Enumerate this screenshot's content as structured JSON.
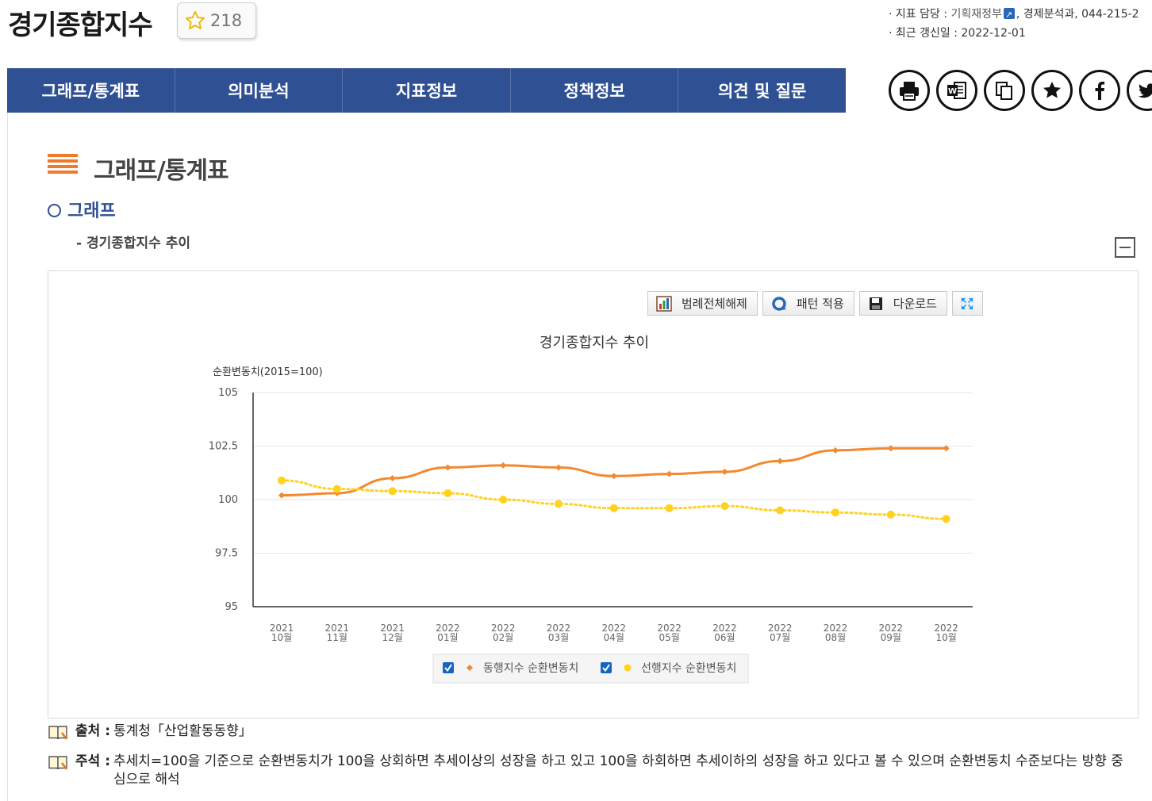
{
  "header": {
    "title": "경기종합지수",
    "favorite_count": "218",
    "meta": {
      "dept_label": "· 지표 담당 :",
      "dept_link": "기획재정부",
      "dept_rest": ", 경제분석과, 044-215-2",
      "updated_label": "· 최근 갱신일 :",
      "updated_value": "2022-12-01"
    }
  },
  "nav": {
    "tabs": [
      {
        "label": "그래프/통계표"
      },
      {
        "label": "의미분석"
      },
      {
        "label": "지표정보"
      },
      {
        "label": "정책정보"
      },
      {
        "label": "의견 및 질문"
      }
    ]
  },
  "share": [
    "printer-icon",
    "word-icon",
    "copy-icon",
    "star-icon",
    "facebook-icon",
    "twitter-icon"
  ],
  "section": {
    "title": "그래프/통계표",
    "subtitle": "그래프",
    "chart_caption": "- 경기종합지수 추이"
  },
  "toolbar": {
    "legend_off": "범례전체해제",
    "pattern": "패턴 적용",
    "download": "다운로드"
  },
  "chart_data": {
    "type": "line",
    "title": "경기종합지수 추이",
    "ylabel": "순환변동치(2015=100)",
    "xlabel": "",
    "ylim": [
      95,
      105
    ],
    "yticks": [
      "105",
      "102.5",
      "100",
      "97.5",
      "95"
    ],
    "categories": [
      [
        "2021",
        "10월"
      ],
      [
        "2021",
        "11월"
      ],
      [
        "2021",
        "12월"
      ],
      [
        "2022",
        "01월"
      ],
      [
        "2022",
        "02월"
      ],
      [
        "2022",
        "03월"
      ],
      [
        "2022",
        "04월"
      ],
      [
        "2022",
        "05월"
      ],
      [
        "2022",
        "06월"
      ],
      [
        "2022",
        "07월"
      ],
      [
        "2022",
        "08월"
      ],
      [
        "2022",
        "09월"
      ],
      [
        "2022",
        "10월"
      ]
    ],
    "legend_position": "bottom",
    "series": [
      {
        "name": "동행지수 순환변동치",
        "color": "#f3892f",
        "marker": "diamond",
        "style": "solid",
        "values": [
          100.2,
          100.3,
          101.0,
          101.5,
          101.6,
          101.5,
          101.1,
          101.2,
          101.3,
          101.8,
          102.3,
          102.4,
          102.4
        ]
      },
      {
        "name": "선행지수 순환변동치",
        "color": "#ffd21f",
        "marker": "circle",
        "style": "dotted",
        "values": [
          100.9,
          100.5,
          100.4,
          100.3,
          100.0,
          99.8,
          99.6,
          99.6,
          99.7,
          99.5,
          99.4,
          99.3,
          99.1
        ]
      }
    ]
  },
  "footnotes": {
    "source_label": "출처 :",
    "source_text": "통계청「산업활동동향」",
    "note_label": "주석 :",
    "note_text": "추세치=100을 기준으로 순환변동치가 100을 상회하면 추세이상의 성장을 하고 있고 100을 하회하면 추세이하의 성장을 하고 있다고 볼 수 있으며 순환변동치 수준보다는 방향 중심으로 해석"
  }
}
